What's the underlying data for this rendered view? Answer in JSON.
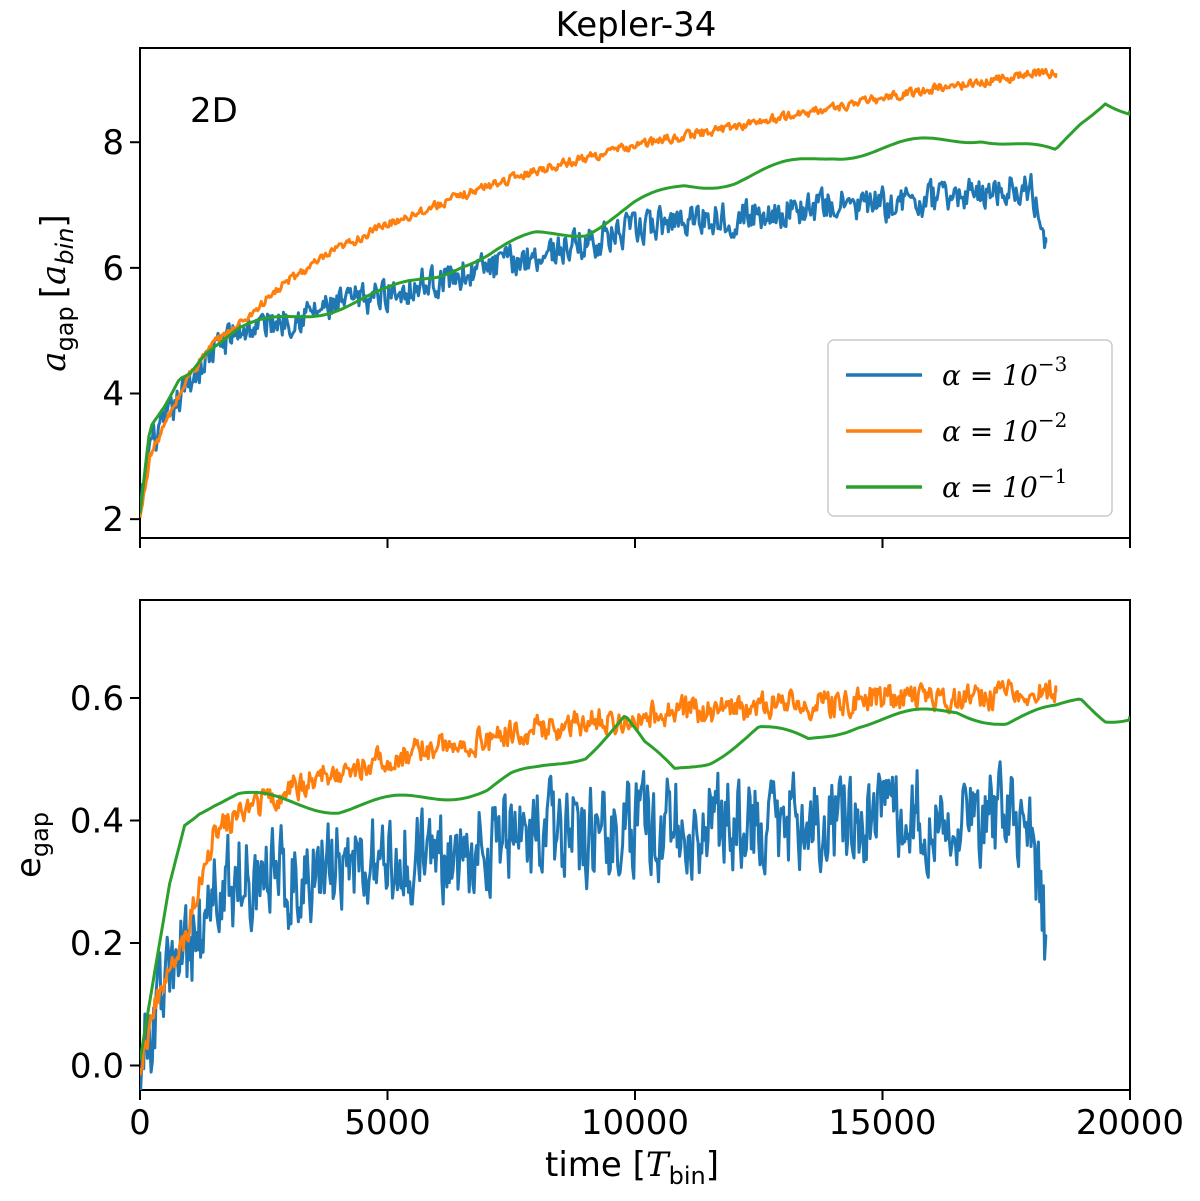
{
  "chart_data": {
    "type": "line",
    "title": "Kepler-34",
    "xlabel": {
      "main": "time [",
      "var": "T",
      "sub": "bin",
      "close": "]"
    },
    "xlim": [
      0,
      20000
    ],
    "xticks": [
      0,
      5000,
      10000,
      15000,
      20000
    ],
    "xtick_labels": [
      "0",
      "5000",
      "10000",
      "15000",
      "20000"
    ],
    "legend": {
      "placement": "center-right of top panel",
      "entries": [
        {
          "name": "α = 10⁻³",
          "base": "α = 10",
          "exp": "−3",
          "color": "#1f77b4"
        },
        {
          "name": "α = 10⁻²",
          "base": "α = 10",
          "exp": "−2",
          "color": "#ff7f0e"
        },
        {
          "name": "α = 10⁻¹",
          "base": "α = 10",
          "exp": "−1",
          "color": "#2ca02c"
        }
      ]
    },
    "panels": [
      {
        "id": "top",
        "annotation": "2D",
        "ylabel": {
          "var": "a",
          "sub": "gap",
          "unit_open": "[",
          "unit_var": "a",
          "unit_sub": "bin",
          "unit_close": "]"
        },
        "ylim": [
          1.7,
          9.5
        ],
        "yticks": [
          2,
          4,
          6,
          8
        ],
        "ytick_labels": [
          "2",
          "4",
          "6",
          "8"
        ],
        "series": [
          {
            "name": "α = 10⁻³",
            "color": "#1f77b4",
            "noise": 0.35,
            "x": [
              0,
              200,
              500,
              1000,
              1500,
              2000,
              3000,
              4000,
              5000,
              6000,
              7000,
              8000,
              9000,
              10000,
              11000,
              12000,
              13000,
              14000,
              15000,
              16000,
              17000,
              18000,
              18300
            ],
            "y": [
              2.0,
              3.2,
              3.5,
              4.2,
              4.7,
              5.0,
              5.2,
              5.4,
              5.6,
              5.8,
              6.0,
              6.2,
              6.4,
              6.6,
              6.8,
              6.8,
              6.9,
              7.0,
              7.0,
              7.1,
              7.2,
              7.3,
              6.4
            ]
          },
          {
            "name": "α = 10⁻²",
            "color": "#ff7f0e",
            "noise": 0.1,
            "x": [
              0,
              200,
              500,
              1000,
              1500,
              2000,
              3000,
              4000,
              5000,
              6000,
              7000,
              8000,
              9000,
              10000,
              11000,
              12000,
              13000,
              14000,
              15000,
              16000,
              17000,
              18000,
              18500
            ],
            "y": [
              2.0,
              3.0,
              3.5,
              4.3,
              4.8,
              5.1,
              5.8,
              6.3,
              6.7,
              7.0,
              7.3,
              7.55,
              7.75,
              7.95,
              8.1,
              8.25,
              8.4,
              8.55,
              8.7,
              8.85,
              8.95,
              9.1,
              9.1
            ]
          },
          {
            "name": "α = 10⁻¹",
            "color": "#2ca02c",
            "noise": 0.0,
            "x": [
              0,
              200,
              500,
              800,
              1000,
              1300,
              1500,
              2000,
              3000,
              4000,
              5000,
              6000,
              6500,
              7000,
              8000,
              9000,
              9500,
              10000,
              11000,
              12000,
              13000,
              14000,
              15000,
              16000,
              17000,
              18000,
              18500,
              19000,
              19500,
              20000
            ],
            "y": [
              2.0,
              3.4,
              3.8,
              4.3,
              4.4,
              4.7,
              4.8,
              5.0,
              5.2,
              5.4,
              5.6,
              5.9,
              6.1,
              6.2,
              6.5,
              6.6,
              6.8,
              7.0,
              7.3,
              7.4,
              7.6,
              7.8,
              7.9,
              8.0,
              8.1,
              7.9,
              7.8,
              8.3,
              8.7,
              8.5
            ]
          }
        ]
      },
      {
        "id": "bottom",
        "ylabel": {
          "var": "e",
          "sub": "gap"
        },
        "ylim": [
          -0.04,
          0.76
        ],
        "yticks": [
          0.0,
          0.2,
          0.4,
          0.6
        ],
        "ytick_labels": [
          "0.0",
          "0.2",
          "0.4",
          "0.6"
        ],
        "series": [
          {
            "name": "α = 10⁻³",
            "color": "#1f77b4",
            "noise": 0.11,
            "x": [
              0,
              300,
              600,
              900,
              1200,
              1500,
              2000,
              3000,
              4000,
              5000,
              6000,
              7000,
              8000,
              9000,
              10000,
              11000,
              12000,
              13000,
              14000,
              15000,
              16000,
              17000,
              18000,
              18300
            ],
            "y": [
              0.0,
              0.08,
              0.15,
              0.18,
              0.22,
              0.28,
              0.31,
              0.31,
              0.32,
              0.33,
              0.34,
              0.36,
              0.37,
              0.38,
              0.39,
              0.39,
              0.4,
              0.4,
              0.4,
              0.41,
              0.41,
              0.41,
              0.4,
              0.21
            ]
          },
          {
            "name": "α = 10⁻²",
            "color": "#ff7f0e",
            "noise": 0.03,
            "x": [
              0,
              300,
              600,
              900,
              1200,
              1500,
              2000,
              3000,
              4000,
              5000,
              6000,
              7000,
              8000,
              9000,
              10000,
              11000,
              12000,
              13000,
              14000,
              15000,
              16000,
              17000,
              18000,
              18500
            ],
            "y": [
              0.0,
              0.1,
              0.15,
              0.2,
              0.3,
              0.38,
              0.41,
              0.45,
              0.48,
              0.5,
              0.52,
              0.53,
              0.55,
              0.56,
              0.57,
              0.58,
              0.58,
              0.59,
              0.59,
              0.6,
              0.6,
              0.6,
              0.61,
              0.61
            ]
          },
          {
            "name": "α = 10⁻¹",
            "color": "#2ca02c",
            "noise": 0.0,
            "x": [
              0,
              300,
              600,
              900,
              1200,
              1500,
              2000,
              3000,
              4000,
              5000,
              6000,
              7000,
              7500,
              8000,
              9000,
              9800,
              10200,
              10800,
              11500,
              12500,
              13500,
              14500,
              15500,
              16500,
              17500,
              18500,
              19000,
              19500,
              20000
            ],
            "y": [
              0.0,
              0.15,
              0.3,
              0.4,
              0.42,
              0.43,
              0.44,
              0.43,
              0.42,
              0.43,
              0.44,
              0.45,
              0.47,
              0.48,
              0.51,
              0.57,
              0.52,
              0.48,
              0.5,
              0.55,
              0.53,
              0.56,
              0.57,
              0.58,
              0.56,
              0.58,
              0.6,
              0.57,
              0.57
            ]
          }
        ]
      }
    ]
  }
}
